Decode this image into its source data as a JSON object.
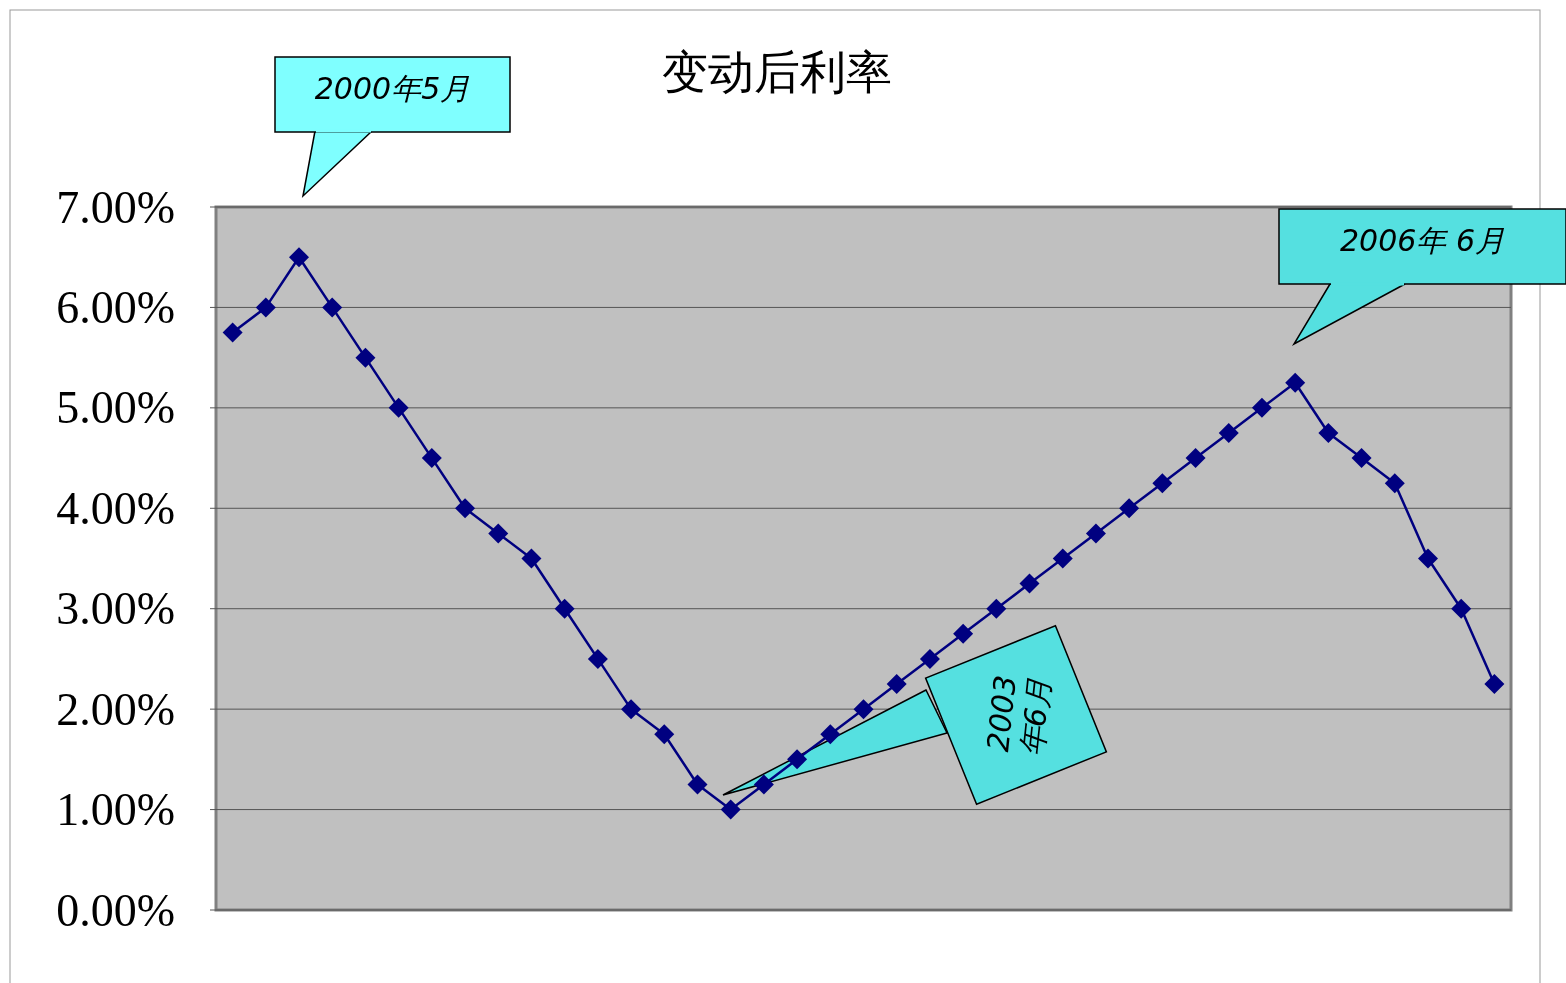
{
  "chart_data": {
    "type": "line",
    "title": "变动后利率",
    "categories": [
      null,
      null,
      null,
      null,
      null,
      null,
      null,
      null,
      null,
      null,
      null,
      null,
      null,
      null,
      null,
      null,
      null,
      null,
      null,
      null,
      null,
      null,
      null,
      null,
      null,
      null,
      null,
      null,
      null,
      null,
      null,
      null,
      null,
      null,
      null,
      null,
      null,
      null,
      null
    ],
    "series": [
      {
        "color": "#000080",
        "values": [
          5.75,
          6.0,
          6.5,
          6.0,
          5.5,
          5.0,
          4.5,
          4.0,
          3.75,
          3.5,
          3.0,
          2.5,
          2.0,
          1.75,
          1.25,
          1.0,
          1.25,
          1.5,
          1.75,
          2.0,
          2.25,
          2.5,
          2.75,
          3.0,
          3.25,
          3.5,
          3.75,
          4.0,
          4.25,
          4.5,
          4.75,
          5.0,
          5.25,
          4.75,
          4.5,
          4.25,
          3.5,
          3.0,
          2.25
        ]
      }
    ],
    "ylim": [
      0,
      7
    ],
    "yticks": [
      {
        "value": 0,
        "label": "0.00%"
      },
      {
        "value": 1,
        "label": "1.00%"
      },
      {
        "value": 2,
        "label": "2.00%"
      },
      {
        "value": 3,
        "label": "3.00%"
      },
      {
        "value": 4,
        "label": "4.00%"
      },
      {
        "value": 5,
        "label": "5.00%"
      },
      {
        "value": 6,
        "label": "6.00%"
      },
      {
        "value": 7,
        "label": "7.00%"
      }
    ],
    "grid": "y",
    "marker": "diamond",
    "line_style": "solid",
    "annotations": [
      "2000年5月",
      "2003年6月",
      "2006年 6月"
    ]
  }
}
